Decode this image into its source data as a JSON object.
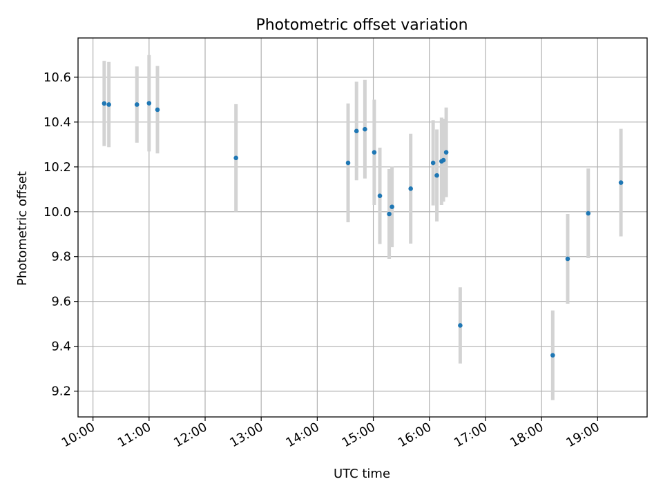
{
  "chart_data": {
    "type": "scatter",
    "title": "Photometric offset variation",
    "xlabel": "UTC time",
    "ylabel": "Photometric offset",
    "x_tick_labels": [
      "10:00",
      "11:00",
      "12:00",
      "13:00",
      "14:00",
      "15:00",
      "16:00",
      "17:00",
      "18:00",
      "19:00"
    ],
    "y_tick_labels": [
      "9.2",
      "9.4",
      "9.6",
      "9.8",
      "10.0",
      "10.2",
      "10.4",
      "10.6"
    ],
    "xlim": [
      "09:44",
      "19:53"
    ],
    "ylim": [
      9.085,
      10.775
    ],
    "grid": true,
    "point_color": "#1f77b4",
    "errorbar_color": "#d3d3d3",
    "series": [
      {
        "points": [
          {
            "x": "10:12",
            "y": 10.483,
            "err": 0.19
          },
          {
            "x": "10:17",
            "y": 10.478,
            "err": 0.19
          },
          {
            "x": "10:47",
            "y": 10.478,
            "err": 0.17
          },
          {
            "x": "11:00",
            "y": 10.484,
            "err": 0.215
          },
          {
            "x": "11:09",
            "y": 10.455,
            "err": 0.195
          },
          {
            "x": "12:33",
            "y": 10.24,
            "err": 0.24
          },
          {
            "x": "14:33",
            "y": 10.218,
            "err": 0.265
          },
          {
            "x": "14:42",
            "y": 10.36,
            "err": 0.22
          },
          {
            "x": "14:51",
            "y": 10.368,
            "err": 0.22
          },
          {
            "x": "15:01",
            "y": 10.265,
            "err": 0.235
          },
          {
            "x": "15:07",
            "y": 10.071,
            "err": 0.215
          },
          {
            "x": "15:17",
            "y": 9.99,
            "err": 0.2
          },
          {
            "x": "15:20",
            "y": 10.022,
            "err": 0.18
          },
          {
            "x": "15:40",
            "y": 10.103,
            "err": 0.245
          },
          {
            "x": "16:04",
            "y": 10.218,
            "err": 0.19
          },
          {
            "x": "16:08",
            "y": 10.162,
            "err": 0.205
          },
          {
            "x": "16:13",
            "y": 10.225,
            "err": 0.195
          },
          {
            "x": "16:15",
            "y": 10.23,
            "err": 0.185
          },
          {
            "x": "16:18",
            "y": 10.265,
            "err": 0.2
          },
          {
            "x": "16:33",
            "y": 9.493,
            "err": 0.17
          },
          {
            "x": "18:12",
            "y": 9.36,
            "err": 0.2
          },
          {
            "x": "18:28",
            "y": 9.79,
            "err": 0.2
          },
          {
            "x": "18:50",
            "y": 9.993,
            "err": 0.2
          },
          {
            "x": "19:25",
            "y": 10.13,
            "err": 0.24
          }
        ]
      }
    ]
  }
}
